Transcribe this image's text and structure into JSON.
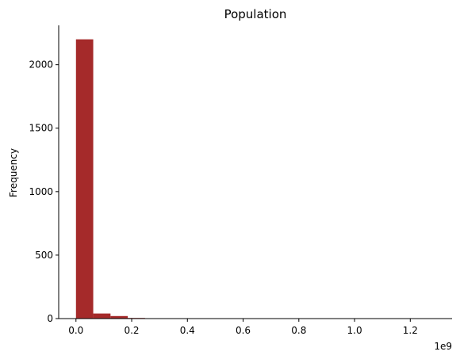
{
  "chart_data": {
    "type": "bar",
    "title": "Population",
    "xlabel": "",
    "ylabel": "Frequency",
    "x_offset_label": "1e9",
    "x_unit": "1e9",
    "xlim": [
      -0.062,
      1.35
    ],
    "ylim": [
      0,
      2310
    ],
    "x_ticks": [
      0.0,
      0.2,
      0.4,
      0.6,
      0.8,
      1.0,
      1.2
    ],
    "x_tick_labels": [
      "0.0",
      "0.2",
      "0.4",
      "0.6",
      "0.8",
      "1.0",
      "1.2"
    ],
    "y_ticks": [
      0,
      500,
      1000,
      1500,
      2000
    ],
    "y_tick_labels": [
      "0",
      "500",
      "1000",
      "1500",
      "2000"
    ],
    "bin_edges": [
      0.0,
      0.062,
      0.124,
      0.186,
      0.248
    ],
    "values": [
      2200,
      40,
      20,
      5
    ],
    "bar_color": "#a52a2a",
    "grid": false,
    "spines": "left-bottom",
    "legend": "none"
  }
}
